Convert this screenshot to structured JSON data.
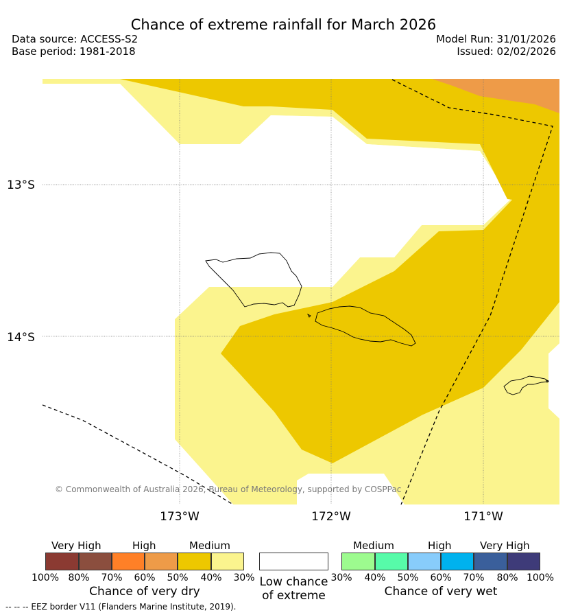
{
  "title": "Chance of extreme rainfall for March 2026",
  "header": {
    "data_source": "Data source: ACCESS-S2",
    "base_period": "Base period: 1981-2018",
    "model_run": "Model Run: 31/01/2026",
    "issued": "Issued: 02/02/2026"
  },
  "map": {
    "lat_labels": [
      "13°S",
      "14°S"
    ],
    "lon_labels": [
      "173°W",
      "172°W",
      "171°W"
    ],
    "copyright": "© Commonwealth of Australia 2026, Bureau of Meteorology, supported by COSPPac",
    "regions": {
      "medium_30_40": "medium-low-yellow",
      "medium_40_50": "medium-yellow",
      "high_50_60": "high-orange"
    },
    "colors": {
      "light_yellow": "#fbf48e",
      "yellow": "#edc800",
      "orange": "#ee9b48"
    }
  },
  "legend": {
    "dry": {
      "headings": [
        "Very High",
        "High",
        "Medium"
      ],
      "ticks": [
        "100%",
        "80%",
        "70%",
        "60%",
        "50%",
        "40%",
        "30%"
      ],
      "title": "Chance of very dry",
      "colors": [
        "#8b3a32",
        "#8b4e3e",
        "#ff8027",
        "#ee9b48",
        "#edc800",
        "#fbf48e"
      ]
    },
    "low": {
      "title_line1": "Low chance",
      "title_line2": "of extreme",
      "color": "#ffffff"
    },
    "wet": {
      "headings": [
        "Medium",
        "High",
        "Very High"
      ],
      "ticks": [
        "30%",
        "40%",
        "50%",
        "60%",
        "70%",
        "80%",
        "100%"
      ],
      "title": "Chance of very wet",
      "colors": [
        "#9dfb8f",
        "#57fba9",
        "#88ccfb",
        "#00b2ee",
        "#3a5f9b",
        "#3e3b79"
      ]
    }
  },
  "footnote": "-- -- -- EEZ border V11 (Flanders Marine Institute, 2019)."
}
